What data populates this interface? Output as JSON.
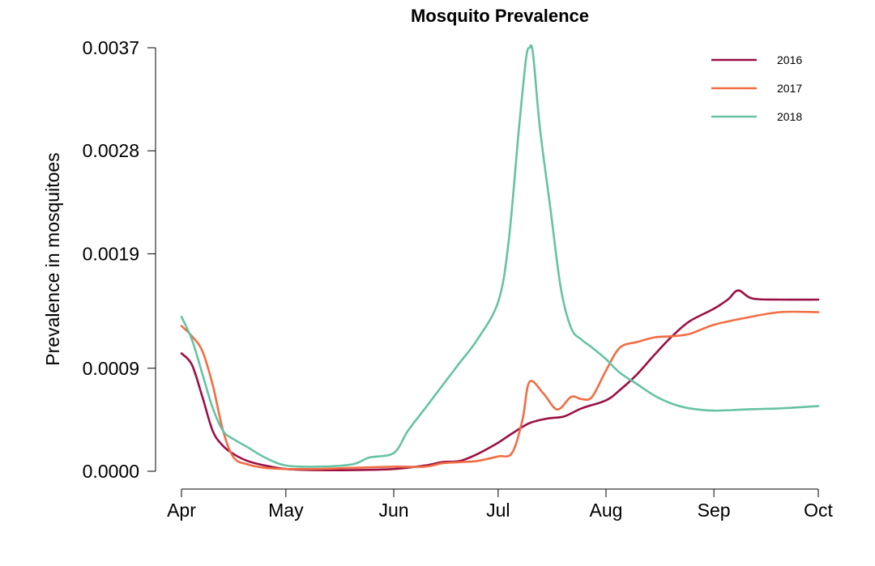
{
  "chart_data": {
    "type": "line",
    "title": "Mosquito Prevalence",
    "xlabel": "",
    "ylabel": "Prevalence in mosquitoes",
    "x_ticks": [
      "Apr",
      "May",
      "Jun",
      "Jul",
      "Aug",
      "Sep",
      "Oct"
    ],
    "x_tick_values": [
      "2000-04-01",
      "2000-05-01",
      "2000-06-01",
      "2000-07-01",
      "2000-08-01",
      "2000-09-01",
      "2000-10-01"
    ],
    "y_ticks": [
      "0.0000",
      "0.0009",
      "0.0019",
      "0.0028",
      "0.0037"
    ],
    "y_tick_values": [
      0.0,
      0.0009,
      0.0019,
      0.0028,
      0.0037
    ],
    "xlim": [
      "2000-04-01",
      "2000-10-01"
    ],
    "ylim": [
      0.0,
      0.0037
    ],
    "grid": false,
    "legend_position": "top-right",
    "series": [
      {
        "name": "2016",
        "color": "#9b0f45",
        "x": [
          "2000-04-01",
          "2000-04-04",
          "2000-04-07",
          "2000-04-10",
          "2000-04-13",
          "2000-04-16",
          "2000-04-20",
          "2000-04-25",
          "2000-05-01",
          "2000-05-10",
          "2000-05-20",
          "2000-06-01",
          "2000-06-10",
          "2000-06-15",
          "2000-06-20",
          "2000-06-25",
          "2000-07-01",
          "2000-07-05",
          "2000-07-10",
          "2000-07-15",
          "2000-07-20",
          "2000-07-25",
          "2000-08-01",
          "2000-08-05",
          "2000-08-10",
          "2000-08-15",
          "2000-08-20",
          "2000-08-25",
          "2000-09-01",
          "2000-09-05",
          "2000-09-08",
          "2000-09-12",
          "2000-09-20",
          "2000-10-01"
        ],
        "values": [
          0.00103,
          0.00093,
          0.00065,
          0.00035,
          0.00022,
          0.00015,
          9e-05,
          5e-05,
          2e-05,
          1e-05,
          1e-05,
          2e-05,
          5e-05,
          8e-05,
          9e-05,
          0.00015,
          0.00025,
          0.00033,
          0.00042,
          0.00046,
          0.00048,
          0.00055,
          0.00062,
          0.00071,
          0.00085,
          0.00102,
          0.00118,
          0.00131,
          0.00142,
          0.0015,
          0.00158,
          0.00151,
          0.0015,
          0.0015
        ]
      },
      {
        "name": "2017",
        "color": "#f26d43",
        "x": [
          "2000-04-01",
          "2000-04-04",
          "2000-04-07",
          "2000-04-10",
          "2000-04-13",
          "2000-04-16",
          "2000-04-20",
          "2000-04-25",
          "2000-05-01",
          "2000-05-10",
          "2000-05-20",
          "2000-06-01",
          "2000-06-10",
          "2000-06-15",
          "2000-06-20",
          "2000-06-25",
          "2000-07-01",
          "2000-07-05",
          "2000-07-08",
          "2000-07-10",
          "2000-07-14",
          "2000-07-18",
          "2000-07-22",
          "2000-07-25",
          "2000-07-28",
          "2000-08-01",
          "2000-08-05",
          "2000-08-10",
          "2000-08-15",
          "2000-08-20",
          "2000-08-25",
          "2000-09-01",
          "2000-09-10",
          "2000-09-20",
          "2000-10-01"
        ],
        "values": [
          0.00127,
          0.00118,
          0.00105,
          0.00075,
          0.00035,
          0.00012,
          6e-05,
          3e-05,
          2e-05,
          2e-05,
          3e-05,
          4e-05,
          4e-05,
          7e-05,
          8e-05,
          9e-05,
          0.00013,
          0.00016,
          0.00045,
          0.00078,
          0.00068,
          0.00054,
          0.00065,
          0.00063,
          0.00065,
          0.00088,
          0.00108,
          0.00113,
          0.00117,
          0.00118,
          0.0012,
          0.00128,
          0.00134,
          0.00139,
          0.00139
        ]
      },
      {
        "name": "2018",
        "color": "#66c2a5",
        "x": [
          "2000-04-01",
          "2000-04-04",
          "2000-04-07",
          "2000-04-10",
          "2000-04-13",
          "2000-04-16",
          "2000-04-20",
          "2000-04-25",
          "2000-05-01",
          "2000-05-10",
          "2000-05-20",
          "2000-05-25",
          "2000-06-01",
          "2000-06-05",
          "2000-06-10",
          "2000-06-15",
          "2000-06-20",
          "2000-06-25",
          "2000-07-01",
          "2000-07-04",
          "2000-07-07",
          "2000-07-09",
          "2000-07-10",
          "2000-07-11",
          "2000-07-13",
          "2000-07-16",
          "2000-07-19",
          "2000-07-22",
          "2000-07-25",
          "2000-07-28",
          "2000-08-01",
          "2000-08-05",
          "2000-08-10",
          "2000-08-15",
          "2000-08-20",
          "2000-08-25",
          "2000-09-01",
          "2000-09-10",
          "2000-09-20",
          "2000-10-01"
        ],
        "values": [
          0.00135,
          0.00115,
          0.00085,
          0.00055,
          0.00035,
          0.00028,
          0.00021,
          0.00012,
          5e-05,
          4e-05,
          6e-05,
          0.00012,
          0.00016,
          0.00035,
          0.00055,
          0.00075,
          0.00095,
          0.00115,
          0.00148,
          0.002,
          0.003,
          0.0036,
          0.0037,
          0.00365,
          0.003,
          0.0023,
          0.0016,
          0.00125,
          0.00115,
          0.00108,
          0.00098,
          0.00086,
          0.00076,
          0.00066,
          0.00059,
          0.00055,
          0.00053,
          0.00054,
          0.00055,
          0.00057
        ]
      }
    ]
  }
}
